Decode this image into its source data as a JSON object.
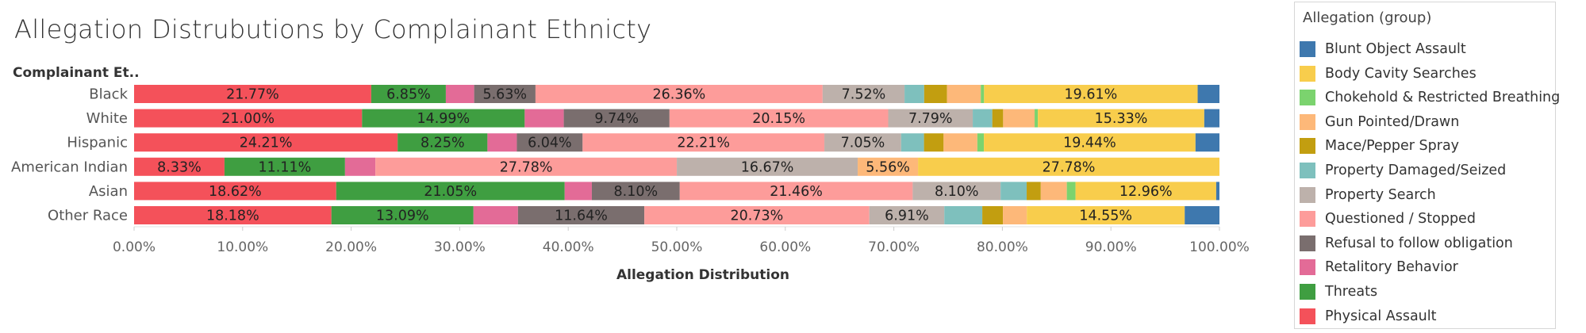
{
  "chart_data": {
    "type": "bar",
    "orientation": "horizontal",
    "stacked": "percent",
    "title": "Allegation Distrubutions by Complainant Ethnicty",
    "ylabel": "Complainant Et..",
    "xlabel": "Allegation Distribution",
    "xlim": [
      0,
      100
    ],
    "xticks": [
      "0.00%",
      "10.00%",
      "20.00%",
      "30.00%",
      "40.00%",
      "50.00%",
      "60.00%",
      "70.00%",
      "80.00%",
      "90.00%",
      "100.00%"
    ],
    "legend_title": "Allegation (group)",
    "legend_position": "right",
    "categories": [
      "Black",
      "White",
      "Hispanic",
      "American Indian",
      "Asian",
      "Other Race"
    ],
    "series": [
      {
        "name": "Physical Assault",
        "color": "#f4515a",
        "values": [
          21.77,
          21.0,
          24.21,
          8.33,
          18.62,
          18.18
        ]
      },
      {
        "name": "Threats",
        "color": "#3f9e41",
        "values": [
          6.85,
          14.99,
          8.25,
          11.11,
          21.05,
          13.09
        ]
      },
      {
        "name": "Retalitory Behavior",
        "color": "#e36b97",
        "values": [
          2.6,
          3.6,
          2.7,
          2.8,
          2.5,
          4.1
        ]
      },
      {
        "name": "Refusal to follow obligation",
        "color": "#7a6e6e",
        "values": [
          5.63,
          9.74,
          6.04,
          0,
          8.1,
          11.64
        ]
      },
      {
        "name": "Questioned / Stopped",
        "color": "#fd9c9a",
        "values": [
          26.36,
          20.15,
          22.21,
          27.78,
          21.46,
          20.73
        ]
      },
      {
        "name": "Property Search",
        "color": "#bdb1ab",
        "values": [
          7.52,
          7.79,
          7.05,
          16.67,
          8.1,
          6.91
        ]
      },
      {
        "name": "Property Damaged/Seized",
        "color": "#7ec0bd",
        "values": [
          1.8,
          1.8,
          2.1,
          0,
          2.4,
          3.5
        ]
      },
      {
        "name": "Mace/Pepper Spray",
        "color": "#c29e10",
        "values": [
          2.1,
          1.0,
          1.8,
          0,
          1.3,
          1.9
        ]
      },
      {
        "name": "Gun Pointed/Drawn",
        "color": "#fdb879",
        "values": [
          3.1,
          2.9,
          3.1,
          5.56,
          2.4,
          2.2
        ]
      },
      {
        "name": "Chokehold & Restricted Breathing",
        "color": "#7bd36e",
        "values": [
          0.3,
          0.3,
          0.6,
          0,
          0.8,
          0
        ]
      },
      {
        "name": "Body Cavity Searches",
        "color": "#f8cd4c",
        "values": [
          19.61,
          15.33,
          19.44,
          27.78,
          12.96,
          14.55
        ]
      },
      {
        "name": "Blunt Object Assault",
        "color": "#3e78ae",
        "values": [
          2.0,
          1.4,
          2.2,
          0,
          0.3,
          3.2
        ]
      }
    ],
    "data_labels": [
      [
        "21.77%",
        "6.85%",
        "",
        "5.63%",
        "26.36%",
        "7.52%",
        "",
        "",
        "",
        "",
        "19.61%",
        ""
      ],
      [
        "21.00%",
        "14.99%",
        "",
        "9.74%",
        "20.15%",
        "7.79%",
        "",
        "",
        "",
        "",
        "15.33%",
        ""
      ],
      [
        "24.21%",
        "8.25%",
        "",
        "6.04%",
        "22.21%",
        "7.05%",
        "",
        "",
        "",
        "",
        "19.44%",
        ""
      ],
      [
        "8.33%",
        "11.11%",
        "",
        "",
        "27.78%",
        "16.67%",
        "",
        "",
        "5.56%",
        "",
        "27.78%",
        ""
      ],
      [
        "18.62%",
        "21.05%",
        "",
        "8.10%",
        "21.46%",
        "8.10%",
        "",
        "",
        "",
        "",
        "12.96%",
        ""
      ],
      [
        "18.18%",
        "13.09%",
        "",
        "11.64%",
        "20.73%",
        "6.91%",
        "",
        "",
        "",
        "",
        "14.55%",
        ""
      ]
    ],
    "legend_order": [
      "Blunt Object Assault",
      "Body Cavity Searches",
      "Chokehold & Restricted Breathing",
      "Gun Pointed/Drawn",
      "Mace/Pepper Spray",
      "Property Damaged/Seized",
      "Property Search",
      "Questioned / Stopped",
      "Refusal to follow obligation",
      "Retalitory Behavior",
      "Threats",
      "Physical Assault"
    ],
    "grid": false
  }
}
